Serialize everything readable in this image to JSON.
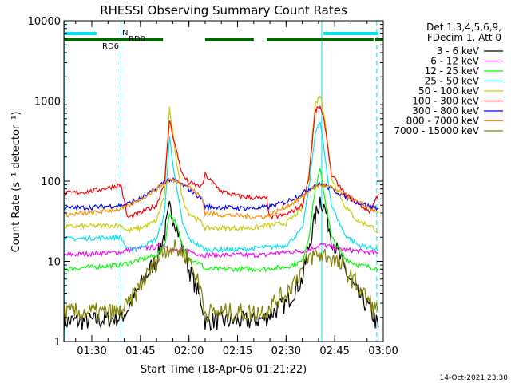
{
  "chart_data": {
    "type": "line",
    "title": "RHESSI Observing Summary Count Rates",
    "xlabel": "Start Time (18-Apr-06 01:21:22)",
    "ylabel": "Count Rate (s⁻¹ detector⁻¹)",
    "y_scale": "log",
    "ylim": [
      1,
      10000
    ],
    "xlim": [
      "01:21:22",
      "03:00:00"
    ],
    "x_ticks": [
      "01:30",
      "01:45",
      "02:00",
      "02:15",
      "02:30",
      "02:45",
      "03:00"
    ],
    "y_ticks": [
      "1",
      "10",
      "100",
      "1000",
      "10000"
    ],
    "footer_date": "14-Oct-2021 23:30",
    "legend": {
      "header": [
        "Det 1,3,4,5,6,9,",
        "FDecim 1, Att 0"
      ],
      "position": "right"
    },
    "flags": [
      {
        "label": "N",
        "color": "#00e5ee",
        "segments": [
          [
            "01:21:22",
            "01:31:30"
          ],
          [
            "02:41:30",
            "02:58:30"
          ]
        ]
      },
      {
        "label": "RD0",
        "color": "#006400",
        "segments": [
          [
            "01:21:22",
            "01:52:00"
          ],
          [
            "02:05:00",
            "02:20:00"
          ],
          [
            "02:24:00",
            "02:57:00"
          ],
          [
            "02:57:30",
            "03:00:00"
          ]
        ]
      },
      {
        "label": "RD6",
        "color": "#006400",
        "segments": []
      }
    ],
    "vertical_markers": [
      {
        "time": "01:21:30",
        "style": "solid",
        "color": "#00e5ee"
      },
      {
        "time": "01:39:00",
        "style": "dashed",
        "color": "#00e5ee"
      },
      {
        "time": "02:41:00",
        "style": "solid",
        "color": "#00e5ee"
      },
      {
        "time": "02:58:00",
        "style": "dashed",
        "color": "#00e5ee"
      }
    ],
    "series": [
      {
        "name": "3 - 6 keV",
        "color": "#000000",
        "x": [
          "01:21:22",
          "01:30:00",
          "01:39:00",
          "01:41:00",
          "01:45:00",
          "01:50:00",
          "01:52:30",
          "01:54:00",
          "01:56:00",
          "01:58:00",
          "02:00:00",
          "02:04:00",
          "02:05:00",
          "02:10:00",
          "02:15:00",
          "02:20:00",
          "02:24:00",
          "02:25:00",
          "02:30:00",
          "02:35:00",
          "02:37:00",
          "02:39:00",
          "02:40:30",
          "02:42:00",
          "02:44:00",
          "02:48:00",
          "02:52:00",
          "02:56:00",
          "02:58:30"
        ],
        "y": [
          1.8,
          1.8,
          2.0,
          2.5,
          5,
          11,
          22,
          45,
          30,
          14,
          8,
          3,
          1.8,
          1.8,
          1.8,
          1.8,
          2.0,
          2.2,
          3,
          6,
          15,
          35,
          60,
          45,
          20,
          8,
          4,
          2.5,
          1.5
        ]
      },
      {
        "name": "6 - 12 keV",
        "color": "#ff00ff",
        "x": [
          "01:21:22",
          "01:30:00",
          "01:39:00",
          "01:41:00",
          "01:45:00",
          "01:50:00",
          "01:52:30",
          "01:54:00",
          "01:56:00",
          "01:58:00",
          "02:00:00",
          "02:04:00",
          "02:05:00",
          "02:10:00",
          "02:15:00",
          "02:20:00",
          "02:24:00",
          "02:25:00",
          "02:30:00",
          "02:35:00",
          "02:37:00",
          "02:39:00",
          "02:40:30",
          "02:42:00",
          "02:44:00",
          "02:48:00",
          "02:52:00",
          "02:56:00",
          "02:58:30"
        ],
        "y": [
          12,
          12.5,
          13,
          14,
          14.5,
          15,
          16,
          14,
          13.5,
          13.5,
          13.5,
          12,
          12,
          12,
          12,
          12,
          12,
          12.5,
          13,
          13.5,
          14,
          15,
          16,
          16,
          15,
          14,
          13.5,
          13,
          12.5
        ]
      },
      {
        "name": "12 - 25 keV",
        "color": "#00ff00",
        "x": [
          "01:21:22",
          "01:30:00",
          "01:39:00",
          "01:41:00",
          "01:45:00",
          "01:50:00",
          "01:52:30",
          "01:54:00",
          "01:56:00",
          "01:58:00",
          "02:00:00",
          "02:04:00",
          "02:05:00",
          "02:10:00",
          "02:15:00",
          "02:20:00",
          "02:24:00",
          "02:25:00",
          "02:30:00",
          "02:35:00",
          "02:37:00",
          "02:39:00",
          "02:40:30",
          "02:42:00",
          "02:44:00",
          "02:48:00",
          "02:52:00",
          "02:56:00",
          "02:58:30"
        ],
        "y": [
          8,
          8.5,
          9,
          9.5,
          10.5,
          12,
          16,
          40,
          30,
          15,
          11,
          9,
          8,
          8,
          8,
          8,
          8,
          8.2,
          8.5,
          10,
          20,
          80,
          140,
          60,
          20,
          11,
          9,
          8.5,
          8
        ]
      },
      {
        "name": "25 - 50 keV",
        "color": "#00e5ee",
        "x": [
          "01:21:22",
          "01:30:00",
          "01:39:00",
          "01:41:00",
          "01:45:00",
          "01:50:00",
          "01:52:30",
          "01:54:00",
          "01:56:00",
          "01:58:00",
          "02:00:00",
          "02:04:00",
          "02:05:00",
          "02:10:00",
          "02:15:00",
          "02:20:00",
          "02:24:00",
          "02:25:00",
          "02:30:00",
          "02:35:00",
          "02:37:00",
          "02:39:00",
          "02:40:30",
          "02:42:00",
          "02:44:00",
          "02:48:00",
          "02:52:00",
          "02:56:00",
          "02:58:30"
        ],
        "y": [
          19,
          19.5,
          20,
          14,
          15,
          19,
          40,
          350,
          90,
          30,
          19,
          15,
          14,
          14,
          14,
          14.5,
          15,
          15,
          16,
          25,
          80,
          400,
          540,
          200,
          50,
          22,
          16,
          15,
          14
        ]
      },
      {
        "name": "50 - 100 keV",
        "color": "#cccc00",
        "x": [
          "01:21:22",
          "01:30:00",
          "01:39:00",
          "01:41:00",
          "01:45:00",
          "01:50:00",
          "01:52:30",
          "01:54:00",
          "01:56:00",
          "01:58:00",
          "02:00:00",
          "02:04:00",
          "02:05:00",
          "02:10:00",
          "02:15:00",
          "02:20:00",
          "02:24:00",
          "02:25:00",
          "02:30:00",
          "02:35:00",
          "02:37:00",
          "02:39:00",
          "02:40:30",
          "02:42:00",
          "02:44:00",
          "02:48:00",
          "02:52:00",
          "02:56:00",
          "02:58:30"
        ],
        "y": [
          27,
          27.5,
          28,
          24,
          26,
          32,
          70,
          800,
          200,
          60,
          40,
          30,
          26,
          26,
          26,
          26,
          28,
          28,
          30,
          45,
          120,
          900,
          1200,
          600,
          110,
          50,
          32,
          28,
          23
        ]
      },
      {
        "name": "100 - 300 keV",
        "color": "#ff0000",
        "x": [
          "01:21:22",
          "01:30:00",
          "01:39:00",
          "01:41:00",
          "01:45:00",
          "01:50:00",
          "01:52:30",
          "01:54:00",
          "01:56:00",
          "01:58:00",
          "02:00:00",
          "02:04:00",
          "02:05:00",
          "02:10:00",
          "02:15:00",
          "02:20:00",
          "02:24:00",
          "02:25:00",
          "02:30:00",
          "02:35:00",
          "02:37:00",
          "02:39:00",
          "02:40:30",
          "02:42:00",
          "02:44:00",
          "02:48:00",
          "02:52:00",
          "02:56:00",
          "02:58:30"
        ],
        "y": [
          70,
          75,
          90,
          35,
          40,
          50,
          100,
          580,
          250,
          120,
          95,
          85,
          120,
          75,
          65,
          62,
          60,
          35,
          38,
          50,
          110,
          750,
          850,
          500,
          120,
          70,
          52,
          42,
          70
        ]
      },
      {
        "name": "300 - 800 keV",
        "color": "#0000ff",
        "x": [
          "01:21:22",
          "01:30:00",
          "01:39:00",
          "01:41:00",
          "01:45:00",
          "01:50:00",
          "01:52:30",
          "01:54:00",
          "01:56:00",
          "01:58:00",
          "02:00:00",
          "02:04:00",
          "02:05:00",
          "02:10:00",
          "02:15:00",
          "02:20:00",
          "02:24:00",
          "02:25:00",
          "02:30:00",
          "02:35:00",
          "02:37:00",
          "02:39:00",
          "02:40:30",
          "02:42:00",
          "02:44:00",
          "02:48:00",
          "02:52:00",
          "02:56:00",
          "02:58:30"
        ],
        "y": [
          46,
          47,
          50,
          52,
          60,
          80,
          100,
          105,
          100,
          90,
          80,
          60,
          48,
          47,
          46,
          46,
          47,
          48,
          55,
          70,
          80,
          90,
          92,
          88,
          80,
          65,
          55,
          48,
          46
        ]
      },
      {
        "name": "800 - 7000 keV",
        "color": "#ff8c00",
        "x": [
          "01:21:22",
          "01:30:00",
          "01:39:00",
          "01:41:00",
          "01:45:00",
          "01:50:00",
          "01:52:30",
          "01:54:00",
          "01:56:00",
          "01:58:00",
          "02:00:00",
          "02:04:00",
          "02:05:00",
          "02:10:00",
          "02:15:00",
          "02:20:00",
          "02:24:00",
          "02:25:00",
          "02:30:00",
          "02:35:00",
          "02:37:00",
          "02:39:00",
          "02:40:30",
          "02:42:00",
          "02:44:00",
          "02:48:00",
          "02:52:00",
          "02:56:00",
          "02:58:30"
        ],
        "y": [
          38,
          40,
          45,
          48,
          60,
          80,
          95,
          105,
          100,
          95,
          85,
          62,
          40,
          38,
          37,
          36,
          36,
          38,
          48,
          62,
          75,
          85,
          90,
          88,
          82,
          68,
          55,
          46,
          40
        ]
      },
      {
        "name": "7000 - 15000 keV",
        "color": "#808000",
        "x": [
          "01:21:22",
          "01:30:00",
          "01:39:00",
          "01:41:00",
          "01:45:00",
          "01:50:00",
          "01:52:30",
          "01:54:00",
          "01:56:00",
          "01:58:00",
          "02:00:00",
          "02:04:00",
          "02:05:00",
          "02:10:00",
          "02:15:00",
          "02:20:00",
          "02:24:00",
          "02:25:00",
          "02:30:00",
          "02:35:00",
          "02:37:00",
          "02:39:00",
          "02:40:30",
          "02:42:00",
          "02:44:00",
          "02:48:00",
          "02:52:00",
          "02:56:00",
          "02:58:30"
        ],
        "y": [
          2.3,
          2.3,
          2.3,
          2.8,
          5,
          10,
          14,
          15,
          14,
          13,
          11,
          4,
          2.3,
          2.3,
          2.3,
          2.3,
          2.5,
          2.8,
          4,
          8,
          11,
          12,
          12,
          12,
          11,
          8,
          5,
          3,
          2.3
        ]
      }
    ]
  }
}
